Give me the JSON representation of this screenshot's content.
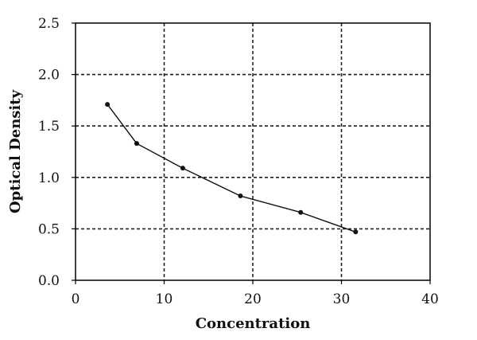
{
  "chart_data": {
    "type": "line",
    "title": "",
    "xlabel": "Concentration",
    "ylabel": "Optical Density",
    "xlim": [
      0,
      40
    ],
    "ylim": [
      0.0,
      2.5
    ],
    "x_ticks": [
      "0",
      "10",
      "20",
      "30",
      "40"
    ],
    "y_ticks": [
      "0.0",
      "0.5",
      "1.0",
      "1.5",
      "2.0",
      "2.5"
    ],
    "grid": true,
    "grid_style": "dashed",
    "series": [
      {
        "x": [
          3.6,
          6.9,
          12.1,
          18.6,
          25.4,
          31.6
        ],
        "y": [
          1.71,
          1.33,
          1.09,
          0.82,
          0.66,
          0.47
        ]
      }
    ],
    "colors": {
      "line": "#111111",
      "grid": "#222222",
      "axis": "#000000"
    }
  }
}
